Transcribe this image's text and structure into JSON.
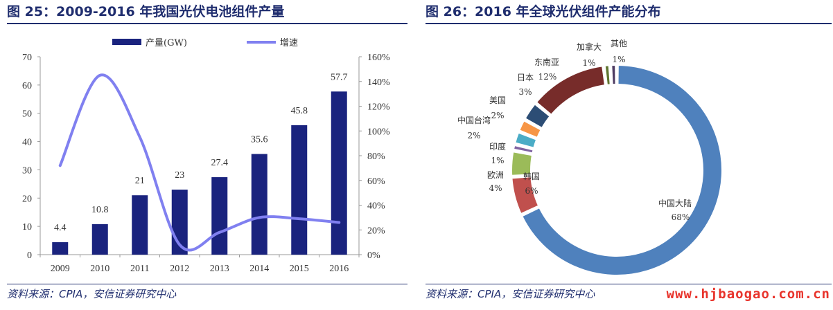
{
  "left": {
    "title": "图 25：2009-2016 年我国光伏电池组件产量",
    "source": "资料来源：CPIA，安信证券研究中心"
  },
  "right": {
    "title": "图 26：2016 年全球光伏组件产能分布",
    "source": "资料来源：CPIA，安信证券研究中心",
    "watermark": "www.hjbaogao.com.cn"
  },
  "chart_data": [
    {
      "type": "bar",
      "title": "",
      "categories": [
        "2009",
        "2010",
        "2011",
        "2012",
        "2013",
        "2014",
        "2015",
        "2016"
      ],
      "series": [
        {
          "name": "产量(GW)",
          "type": "bar",
          "axis": "left",
          "values": [
            4.4,
            10.8,
            21,
            23,
            27.4,
            35.6,
            45.8,
            57.7
          ],
          "labels": [
            "4.4",
            "10.8",
            "21",
            "23",
            "27.4",
            "35.6",
            "45.8",
            "57.7"
          ]
        },
        {
          "name": "增速",
          "type": "line",
          "axis": "right",
          "values": [
            72,
            145,
            95,
            8,
            18,
            30,
            29,
            26
          ]
        }
      ],
      "ylim": [
        0,
        70
      ],
      "yticks": [
        "0",
        "10",
        "20",
        "30",
        "40",
        "50",
        "60",
        "70"
      ],
      "y2lim": [
        0,
        160
      ],
      "y2ticks": [
        "0%",
        "20%",
        "40%",
        "60%",
        "80%",
        "100%",
        "120%",
        "140%",
        "160%"
      ],
      "legend": "top-center",
      "grid": false,
      "colors": {
        "bar": "#1a237e",
        "line": "#8080f0"
      }
    },
    {
      "type": "pie",
      "variant": "donut",
      "title": "",
      "slices": [
        {
          "name": "中国大陆",
          "value": 68,
          "label": "68%",
          "color": "#4f81bd"
        },
        {
          "name": "韩国",
          "value": 6,
          "label": "6%",
          "color": "#c0504d"
        },
        {
          "name": "欧洲",
          "value": 4,
          "label": "4%",
          "color": "#9bbb59"
        },
        {
          "name": "印度",
          "value": 1,
          "label": "1%",
          "color": "#8064a2"
        },
        {
          "name": "中国台湾",
          "value": 2,
          "label": "2%",
          "color": "#4bacc6"
        },
        {
          "name": "美国",
          "value": 2,
          "label": "2%",
          "color": "#f79646"
        },
        {
          "name": "日本",
          "value": 3,
          "label": "3%",
          "color": "#2c4d75"
        },
        {
          "name": "东南亚",
          "value": 12,
          "label": "12%",
          "color": "#772c2a"
        },
        {
          "name": "加拿大",
          "value": 1,
          "label": "1%",
          "color": "#5f7530"
        },
        {
          "name": "其他",
          "value": 1,
          "label": "1%",
          "color": "#4d3b62"
        }
      ]
    }
  ]
}
